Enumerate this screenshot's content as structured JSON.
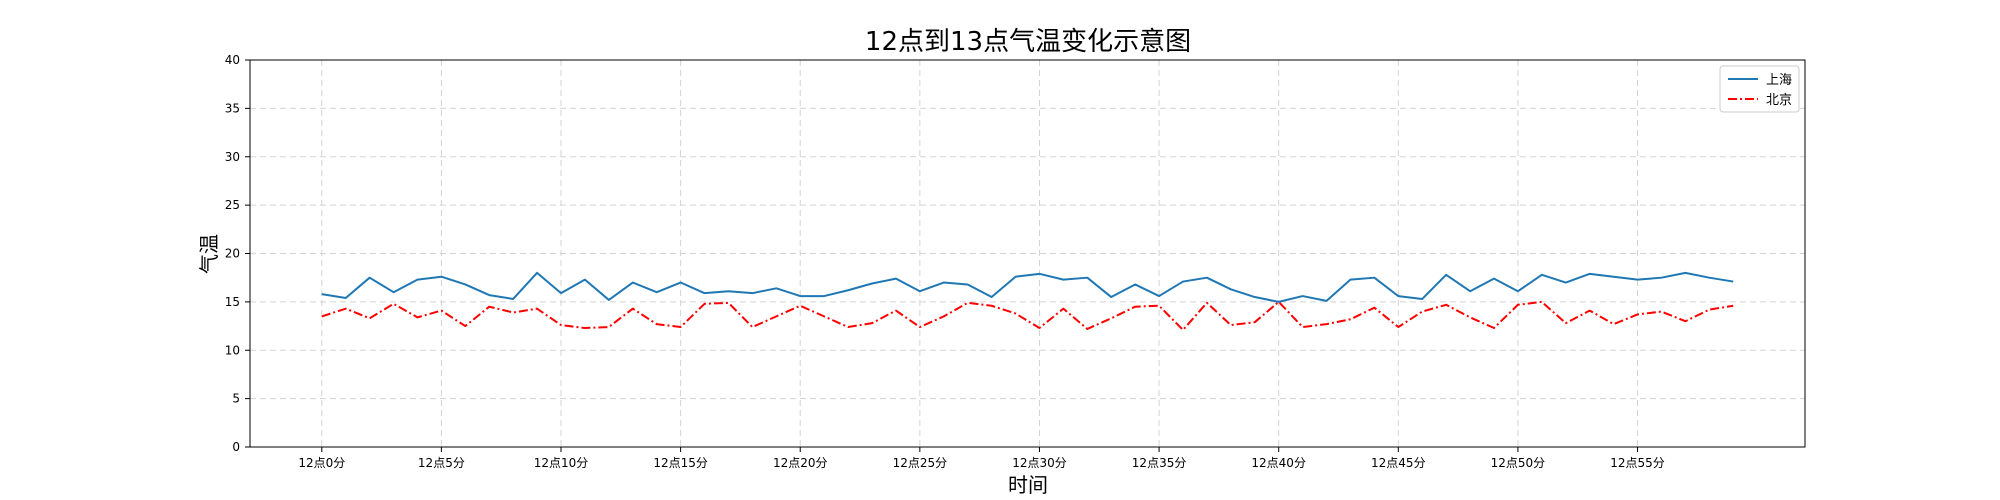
{
  "chart_data": {
    "type": "line",
    "title": "12点到13点气温变化示意图",
    "xlabel": "时间",
    "ylabel": "气温",
    "ylim": [
      0,
      40
    ],
    "yticks": [
      0,
      5,
      10,
      15,
      20,
      25,
      30,
      35,
      40
    ],
    "xlim": [
      -3,
      62
    ],
    "grid": true,
    "grid_style": "dashed",
    "legend_position": "top-right",
    "x": [
      0,
      1,
      2,
      3,
      4,
      5,
      6,
      7,
      8,
      9,
      10,
      11,
      12,
      13,
      14,
      15,
      16,
      17,
      18,
      19,
      20,
      21,
      22,
      23,
      24,
      25,
      26,
      27,
      28,
      29,
      30,
      31,
      32,
      33,
      34,
      35,
      36,
      37,
      38,
      39,
      40,
      41,
      42,
      43,
      44,
      45,
      46,
      47,
      48,
      49,
      50,
      51,
      52,
      53,
      54,
      55,
      56,
      57,
      58,
      59
    ],
    "xticks": [
      {
        "x": 0,
        "label": "12点0分"
      },
      {
        "x": 5,
        "label": "12点5分"
      },
      {
        "x": 10,
        "label": "12点10分"
      },
      {
        "x": 15,
        "label": "12点15分"
      },
      {
        "x": 20,
        "label": "12点20分"
      },
      {
        "x": 25,
        "label": "12点25分"
      },
      {
        "x": 30,
        "label": "12点30分"
      },
      {
        "x": 35,
        "label": "12点35分"
      },
      {
        "x": 40,
        "label": "12点40分"
      },
      {
        "x": 45,
        "label": "12点45分"
      },
      {
        "x": 50,
        "label": "12点50分"
      },
      {
        "x": 55,
        "label": "12点55分"
      }
    ],
    "series": [
      {
        "name": "上海",
        "color": "#1f77b4",
        "linestyle": "solid",
        "values": [
          15.8,
          15.4,
          17.5,
          16.0,
          17.3,
          17.6,
          16.8,
          15.7,
          15.3,
          18.0,
          15.9,
          17.3,
          15.2,
          17.0,
          16.0,
          17.0,
          15.9,
          16.1,
          15.9,
          16.4,
          15.6,
          15.6,
          16.2,
          16.9,
          17.4,
          16.1,
          17.0,
          16.8,
          15.5,
          17.6,
          17.9,
          17.3,
          17.5,
          15.5,
          16.8,
          15.6,
          17.1,
          17.5,
          16.3,
          15.5,
          15.0,
          15.6,
          15.1,
          17.3,
          17.5,
          15.6,
          15.3,
          17.8,
          16.1,
          17.4,
          16.1,
          17.8,
          17.0,
          17.9,
          17.6,
          17.3,
          17.5,
          18.0,
          17.5,
          17.1
        ]
      },
      {
        "name": "北京",
        "color": "#ff0000",
        "linestyle": "dashdot",
        "values": [
          13.5,
          14.3,
          13.3,
          14.8,
          13.4,
          14.1,
          12.5,
          14.5,
          13.9,
          14.3,
          12.6,
          12.3,
          12.4,
          14.3,
          12.7,
          12.4,
          14.8,
          14.9,
          12.4,
          13.5,
          14.6,
          13.5,
          12.4,
          12.8,
          14.1,
          12.4,
          13.5,
          14.9,
          14.6,
          13.8,
          12.3,
          14.3,
          12.2,
          13.3,
          14.5,
          14.6,
          12.1,
          14.9,
          12.6,
          12.9,
          15.0,
          12.4,
          12.7,
          13.2,
          14.4,
          12.4,
          14.0,
          14.7,
          13.4,
          12.3,
          14.7,
          15.0,
          12.8,
          14.1,
          12.7,
          13.7,
          14.0,
          13.0,
          14.2,
          14.6
        ]
      }
    ]
  }
}
